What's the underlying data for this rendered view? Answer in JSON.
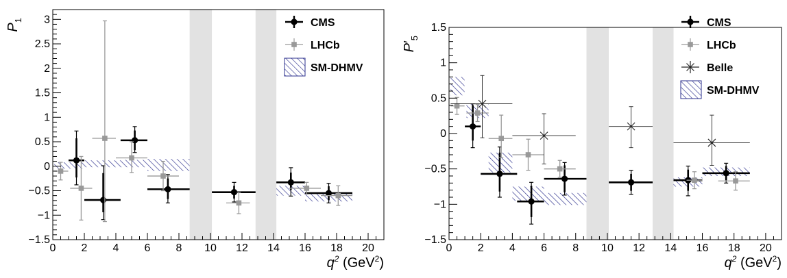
{
  "colors": {
    "cms": "#000000",
    "lhcb": "#999999",
    "belle": "#222222",
    "band": "#2b2f8c",
    "veto": "#e2e2e2"
  },
  "chart_data": [
    {
      "type": "scatter",
      "ylabel_main": "P",
      "ylabel_sub": "1",
      "ylabel_prime": "",
      "xlabel": "q",
      "xlabel_sup": "2",
      "xlabel_unit": " (GeV",
      "xlabel_unit_sup": "2",
      "xlabel_close": ")",
      "xlim": [
        0,
        21
      ],
      "ylim": [
        -1.5,
        3.2
      ],
      "xticks": [
        0,
        2,
        4,
        6,
        8,
        10,
        12,
        14,
        16,
        18,
        20
      ],
      "xtick_labels": [
        "0",
        "2",
        "4",
        "6",
        "8",
        "10",
        "12",
        "14",
        "16",
        "18",
        "20"
      ],
      "yticks": [
        -1.5,
        -1,
        -0.5,
        0,
        0.5,
        1,
        1.5,
        2,
        2.5,
        3
      ],
      "ytick_labels": [
        "−1.5",
        "−1",
        "−0.5",
        "0",
        "0.5",
        "1",
        "1.5",
        "2",
        "2.5",
        "3"
      ],
      "veto_regions": [
        [
          8.68,
          10.09
        ],
        [
          12.86,
          14.18
        ]
      ],
      "legend": {
        "position": "top-right",
        "entries": [
          "CMS",
          "LHCb",
          "SM-DHMV"
        ]
      },
      "series": [
        {
          "name": "CMS",
          "style": "cms",
          "points": [
            {
              "x": 1.5,
              "xlo": 1,
              "xhi": 2,
              "y": 0.12,
              "ylo_s": 0.35,
              "yhi_s": 0.45,
              "ylo_t": 0.5,
              "yhi_t": 0.6
            },
            {
              "x": 3.2,
              "xlo": 2,
              "xhi": 4.3,
              "y": -0.69,
              "ylo_s": 0.25,
              "yhi_s": 0.55,
              "ylo_t": 0.4,
              "yhi_t": 0.7
            },
            {
              "x": 5.2,
              "xlo": 4.3,
              "xhi": 6,
              "y": 0.53,
              "ylo_s": 0.2,
              "yhi_s": 0.2,
              "ylo_t": 0.25,
              "yhi_t": 0.28
            },
            {
              "x": 7.3,
              "xlo": 6,
              "xhi": 8.68,
              "y": -0.47,
              "ylo_s": 0.2,
              "yhi_s": 0.22,
              "ylo_t": 0.28,
              "yhi_t": 0.3
            },
            {
              "x": 11.5,
              "xlo": 10.09,
              "xhi": 12.86,
              "y": -0.53,
              "ylo_s": 0.13,
              "yhi_s": 0.13,
              "ylo_t": 0.2,
              "yhi_t": 0.2
            },
            {
              "x": 15.1,
              "xlo": 14.18,
              "xhi": 16,
              "y": -0.33,
              "ylo_s": 0.15,
              "yhi_s": 0.2,
              "ylo_t": 0.28,
              "yhi_t": 0.3
            },
            {
              "x": 17.5,
              "xlo": 16,
              "xhi": 19,
              "y": -0.55,
              "ylo_s": 0.14,
              "yhi_s": 0.14,
              "ylo_t": 0.2,
              "yhi_t": 0.2
            }
          ]
        },
        {
          "name": "LHCb",
          "style": "lhcb",
          "points": [
            {
              "x": 0.5,
              "xlo": 0.1,
              "xhi": 0.98,
              "y": -0.1,
              "ylo": 0.18,
              "yhi": 0.18
            },
            {
              "x": 1.8,
              "xlo": 1.1,
              "xhi": 2.5,
              "y": -0.45,
              "ylo": 0.65,
              "yhi": 0.65
            },
            {
              "x": 3.3,
              "xlo": 2.5,
              "xhi": 4,
              "y": 0.57,
              "ylo": 1.7,
              "yhi": 2.4
            },
            {
              "x": 5.0,
              "xlo": 4,
              "xhi": 6,
              "y": 0.17,
              "ylo": 0.3,
              "yhi": 0.33
            },
            {
              "x": 7.0,
              "xlo": 6,
              "xhi": 8,
              "y": -0.2,
              "ylo": 0.3,
              "yhi": 0.3
            },
            {
              "x": 11.8,
              "xlo": 11,
              "xhi": 12.5,
              "y": -0.75,
              "ylo": 0.22,
              "yhi": 0.22
            },
            {
              "x": 16.1,
              "xlo": 15,
              "xhi": 17,
              "y": -0.45,
              "ylo": 0.12,
              "yhi": 0.12
            },
            {
              "x": 18.1,
              "xlo": 17,
              "xhi": 19,
              "y": -0.6,
              "ylo": 0.2,
              "yhi": 0.2
            }
          ]
        }
      ],
      "bands": [
        {
          "xlo": 0.1,
          "xhi": 2,
          "ylo": -0.05,
          "yhi": 0.08
        },
        {
          "xlo": 2,
          "xhi": 4.3,
          "ylo": -0.02,
          "yhi": 0.12
        },
        {
          "xlo": 4.3,
          "xhi": 6,
          "ylo": -0.02,
          "yhi": 0.13
        },
        {
          "xlo": 6,
          "xhi": 8.68,
          "ylo": -0.1,
          "yhi": 0.15
        },
        {
          "xlo": 14.18,
          "xhi": 16,
          "ylo": -0.6,
          "yhi": -0.4
        },
        {
          "xlo": 16,
          "xhi": 19,
          "ylo": -0.72,
          "yhi": -0.57
        }
      ]
    },
    {
      "type": "scatter",
      "ylabel_main": "P",
      "ylabel_sub": "5",
      "ylabel_prime": "′",
      "xlabel": "q",
      "xlabel_sup": "2",
      "xlabel_unit": " (GeV",
      "xlabel_unit_sup": "2",
      "xlabel_close": ")",
      "xlim": [
        0,
        21
      ],
      "ylim": [
        -1.5,
        1.5
      ],
      "xticks": [
        0,
        2,
        4,
        6,
        8,
        10,
        12,
        14,
        16,
        18,
        20
      ],
      "xtick_labels": [
        "0",
        "2",
        "4",
        "6",
        "8",
        "10",
        "12",
        "14",
        "16",
        "18",
        "20"
      ],
      "yticks": [
        -1.5,
        -1,
        -0.5,
        0,
        0.5,
        1,
        1.5
      ],
      "ytick_labels": [
        "−1.5",
        "−1",
        "−0.5",
        "0",
        "0.5",
        "1",
        "1.5"
      ],
      "veto_regions": [
        [
          8.68,
          10.09
        ],
        [
          12.86,
          14.18
        ]
      ],
      "legend": {
        "position": "top-right",
        "entries": [
          "CMS",
          "LHCb",
          "Belle",
          "SM-DHMV"
        ]
      },
      "series": [
        {
          "name": "CMS",
          "style": "cms",
          "points": [
            {
              "x": 1.5,
              "xlo": 1,
              "xhi": 2,
              "y": 0.1,
              "ylo_s": 0.2,
              "yhi_s": 0.3,
              "ylo_t": 0.3,
              "yhi_t": 0.32
            },
            {
              "x": 3.2,
              "xlo": 2,
              "xhi": 4.3,
              "y": -0.57,
              "ylo_s": 0.25,
              "yhi_s": 0.3,
              "ylo_t": 0.33,
              "yhi_t": 0.38
            },
            {
              "x": 5.2,
              "xlo": 4.3,
              "xhi": 6,
              "y": -0.96,
              "ylo_s": 0.22,
              "yhi_s": 0.22,
              "ylo_t": 0.32,
              "yhi_t": 0.27
            },
            {
              "x": 7.3,
              "xlo": 6,
              "xhi": 8.68,
              "y": -0.64,
              "ylo_s": 0.19,
              "yhi_s": 0.19,
              "ylo_t": 0.23,
              "yhi_t": 0.23
            },
            {
              "x": 11.5,
              "xlo": 10.09,
              "xhi": 12.86,
              "y": -0.69,
              "ylo_s": 0.12,
              "yhi_s": 0.12,
              "ylo_t": 0.17,
              "yhi_t": 0.17
            },
            {
              "x": 15.1,
              "xlo": 14.18,
              "xhi": 16,
              "y": -0.66,
              "ylo_s": 0.15,
              "yhi_s": 0.15,
              "ylo_t": 0.22,
              "yhi_t": 0.2
            },
            {
              "x": 17.5,
              "xlo": 16,
              "xhi": 19,
              "y": -0.56,
              "ylo_s": 0.1,
              "yhi_s": 0.1,
              "ylo_t": 0.14,
              "yhi_t": 0.14
            }
          ]
        },
        {
          "name": "LHCb",
          "style": "lhcb",
          "points": [
            {
              "x": 0.5,
              "xlo": 0.1,
              "xhi": 0.98,
              "y": 0.39,
              "ylo": 0.12,
              "yhi": 0.12
            },
            {
              "x": 1.8,
              "xlo": 1.1,
              "xhi": 2.5,
              "y": 0.29,
              "ylo": 0.12,
              "yhi": 0.12
            },
            {
              "x": 3.3,
              "xlo": 2.5,
              "xhi": 4,
              "y": -0.07,
              "ylo": 0.27,
              "yhi": 0.33
            },
            {
              "x": 5.0,
              "xlo": 4,
              "xhi": 6,
              "y": -0.3,
              "ylo": 0.22,
              "yhi": 0.22
            },
            {
              "x": 7.0,
              "xlo": 6,
              "xhi": 8,
              "y": -0.5,
              "ylo": 0.12,
              "yhi": 0.12
            },
            {
              "x": 15.5,
              "xlo": 15,
              "xhi": 16,
              "y": -0.66,
              "ylo": 0.12,
              "yhi": 0.12
            },
            {
              "x": 18.1,
              "xlo": 17,
              "xhi": 19,
              "y": -0.67,
              "ylo": 0.13,
              "yhi": 0.13
            }
          ]
        },
        {
          "name": "Belle",
          "style": "belle",
          "points": [
            {
              "x": 2.1,
              "xlo": 0.1,
              "xhi": 4,
              "y": 0.42,
              "ylo": 0.48,
              "yhi": 0.4
            },
            {
              "x": 6.0,
              "xlo": 4,
              "xhi": 8,
              "y": -0.03,
              "ylo": 0.4,
              "yhi": 0.31
            },
            {
              "x": 11.5,
              "xlo": 10.09,
              "xhi": 12.86,
              "y": 0.1,
              "ylo": 0.3,
              "yhi": 0.28
            },
            {
              "x": 16.6,
              "xlo": 14.18,
              "xhi": 19,
              "y": -0.13,
              "ylo": 0.32,
              "yhi": 0.39
            }
          ]
        }
      ],
      "bands": [
        {
          "xlo": 0.1,
          "xhi": 0.98,
          "ylo": 0.54,
          "yhi": 0.8
        },
        {
          "xlo": 1.1,
          "xhi": 2.5,
          "ylo": 0.22,
          "yhi": 0.42
        },
        {
          "xlo": 2.5,
          "xhi": 4,
          "ylo": -0.55,
          "yhi": -0.27
        },
        {
          "xlo": 4,
          "xhi": 6,
          "ylo": -0.95,
          "yhi": -0.75
        },
        {
          "xlo": 6,
          "xhi": 8.68,
          "ylo": -1.01,
          "yhi": -0.84
        },
        {
          "xlo": 14.18,
          "xhi": 16,
          "ylo": -0.75,
          "yhi": -0.62
        },
        {
          "xlo": 16,
          "xhi": 19,
          "ylo": -0.6,
          "yhi": -0.48
        }
      ]
    }
  ]
}
